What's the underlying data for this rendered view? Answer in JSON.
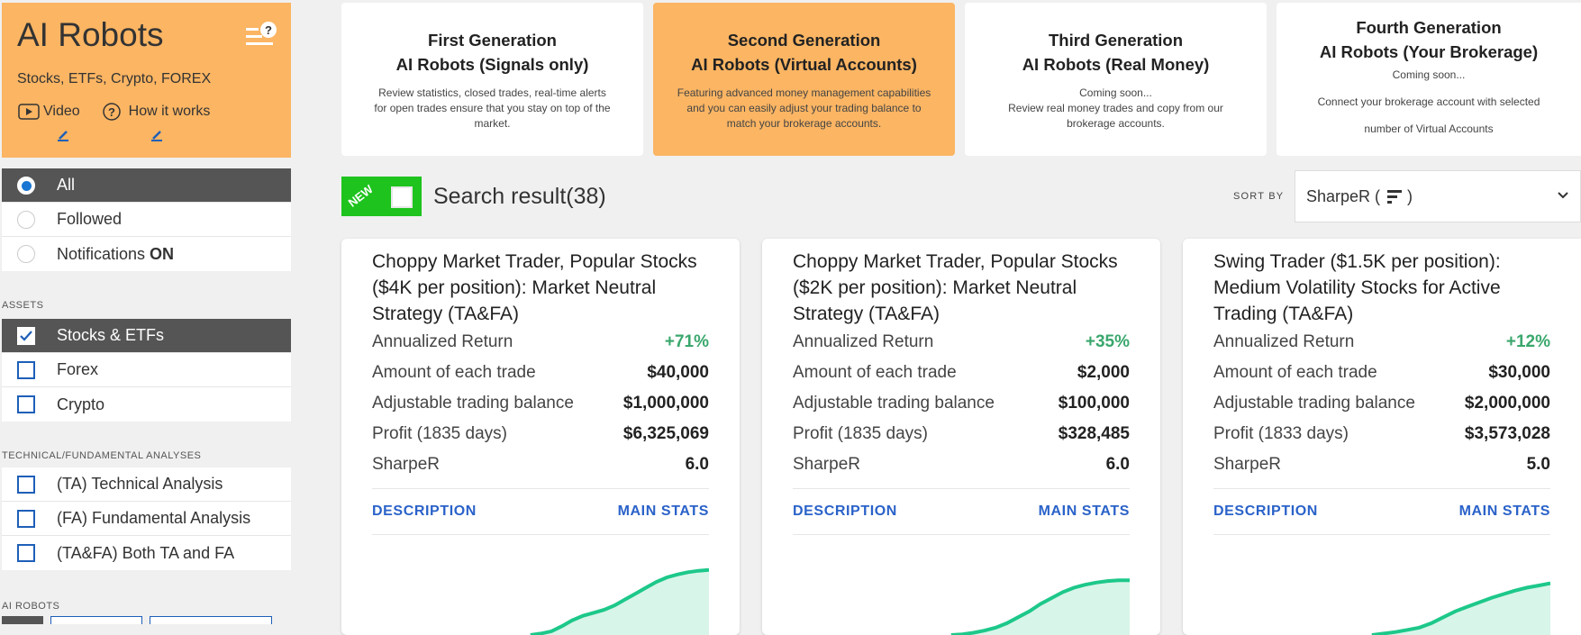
{
  "brand": {
    "title": "AI Robots",
    "subtitle": "Stocks, ETFs, Crypto, FOREX",
    "video_label": "Video",
    "how_label": "How it works"
  },
  "filters": {
    "view": [
      {
        "label": "All",
        "active": true
      },
      {
        "label": "Followed",
        "active": false
      },
      {
        "label_prefix": "Notifications ",
        "label_bold": "ON",
        "active": false
      }
    ],
    "assets_label": "ASSETS",
    "assets": [
      {
        "label": "Stocks & ETFs",
        "checked": true
      },
      {
        "label": "Forex",
        "checked": false
      },
      {
        "label": "Crypto",
        "checked": false
      }
    ],
    "analyses_label": "TECHNICAL/FUNDAMENTAL ANALYSES",
    "analyses": [
      {
        "label": "(TA) Technical Analysis"
      },
      {
        "label": "(FA) Fundamental Analysis"
      },
      {
        "label": "(TA&FA) Both TA and FA"
      }
    ],
    "ai_robots_label": "AI ROBOTS"
  },
  "generations": [
    {
      "line1": "First Generation",
      "line2": "AI Robots (Signals only)",
      "desc": "Review statistics, closed trades, real-time alerts for open trades ensure that you stay on top of the market.",
      "active": false
    },
    {
      "line1": "Second Generation",
      "line2": "AI Robots (Virtual Accounts)",
      "desc": "Featuring advanced money management capabilities and you can easily adjust your trading balance to match your brokerage accounts.",
      "active": true
    },
    {
      "line1": "Third Generation",
      "line2": "AI Robots (Real Money)",
      "coming": "Coming soon...",
      "desc": "Review real money trades and copy from our brokerage accounts.",
      "active": false
    },
    {
      "line1": "Fourth Generation",
      "line2": "AI Robots (Your Brokerage)",
      "coming": "Coming soon...",
      "desc1": "Connect your brokerage account with selected",
      "desc2": "number of Virtual Accounts",
      "active": false
    }
  ],
  "toolbar": {
    "new_label": "NEW",
    "search_result": "Search result(38)",
    "sort_label": "SORT BY",
    "sort_value": "SharpeR (",
    "sort_close": ")"
  },
  "labels": {
    "annualized": "Annualized Return",
    "amount": "Amount of each trade",
    "balance": "Adjustable trading balance",
    "sharpe": "SharpeR",
    "description": "DESCRIPTION",
    "main_stats": "MAIN STATS"
  },
  "cards": [
    {
      "title": "Choppy Market Trader, Popular Stocks ($4K per position): Market Neutral Strategy (TA&FA)",
      "annualized": "+71%",
      "amount": "$40,000",
      "balance": "$1,000,000",
      "profit_label": "Profit (1835 days)",
      "profit": "$6,325,069",
      "sharpe": "6.0",
      "curve": [
        0.0,
        0.02,
        0.05,
        0.12,
        0.2,
        0.26,
        0.3,
        0.34,
        0.4,
        0.48,
        0.56,
        0.64,
        0.72,
        0.78,
        0.82,
        0.85,
        0.87,
        0.88
      ]
    },
    {
      "title": "Choppy Market Trader, Popular Stocks ($2K per position): Market Neutral Strategy (TA&FA)",
      "annualized": "+35%",
      "amount": "$2,000",
      "balance": "$100,000",
      "profit_label": "Profit (1835 days)",
      "profit": "$328,485",
      "sharpe": "6.0",
      "curve": [
        0.0,
        0.01,
        0.03,
        0.06,
        0.1,
        0.16,
        0.24,
        0.32,
        0.42,
        0.5,
        0.58,
        0.64,
        0.68,
        0.71,
        0.73,
        0.74,
        0.74
      ]
    },
    {
      "title": "Swing Trader ($1.5K per position): Medium Volatility Stocks for Active Trading (TA&FA)",
      "annualized": "+12%",
      "amount": "$30,000",
      "balance": "$2,000,000",
      "profit_label": "Profit (1833 days)",
      "profit": "$3,573,028",
      "sharpe": "5.0",
      "curve": [
        0.0,
        0.02,
        0.04,
        0.07,
        0.1,
        0.16,
        0.24,
        0.32,
        0.38,
        0.44,
        0.5,
        0.55,
        0.6,
        0.64,
        0.67,
        0.7
      ]
    }
  ],
  "colors": {
    "brand_orange": "#fbb563",
    "new_green": "#1ec31e",
    "link_blue": "#2a62c9",
    "positive_green": "#3aa76d",
    "curve": "#1dc88a",
    "curve_fill": "#d8f5ea"
  }
}
